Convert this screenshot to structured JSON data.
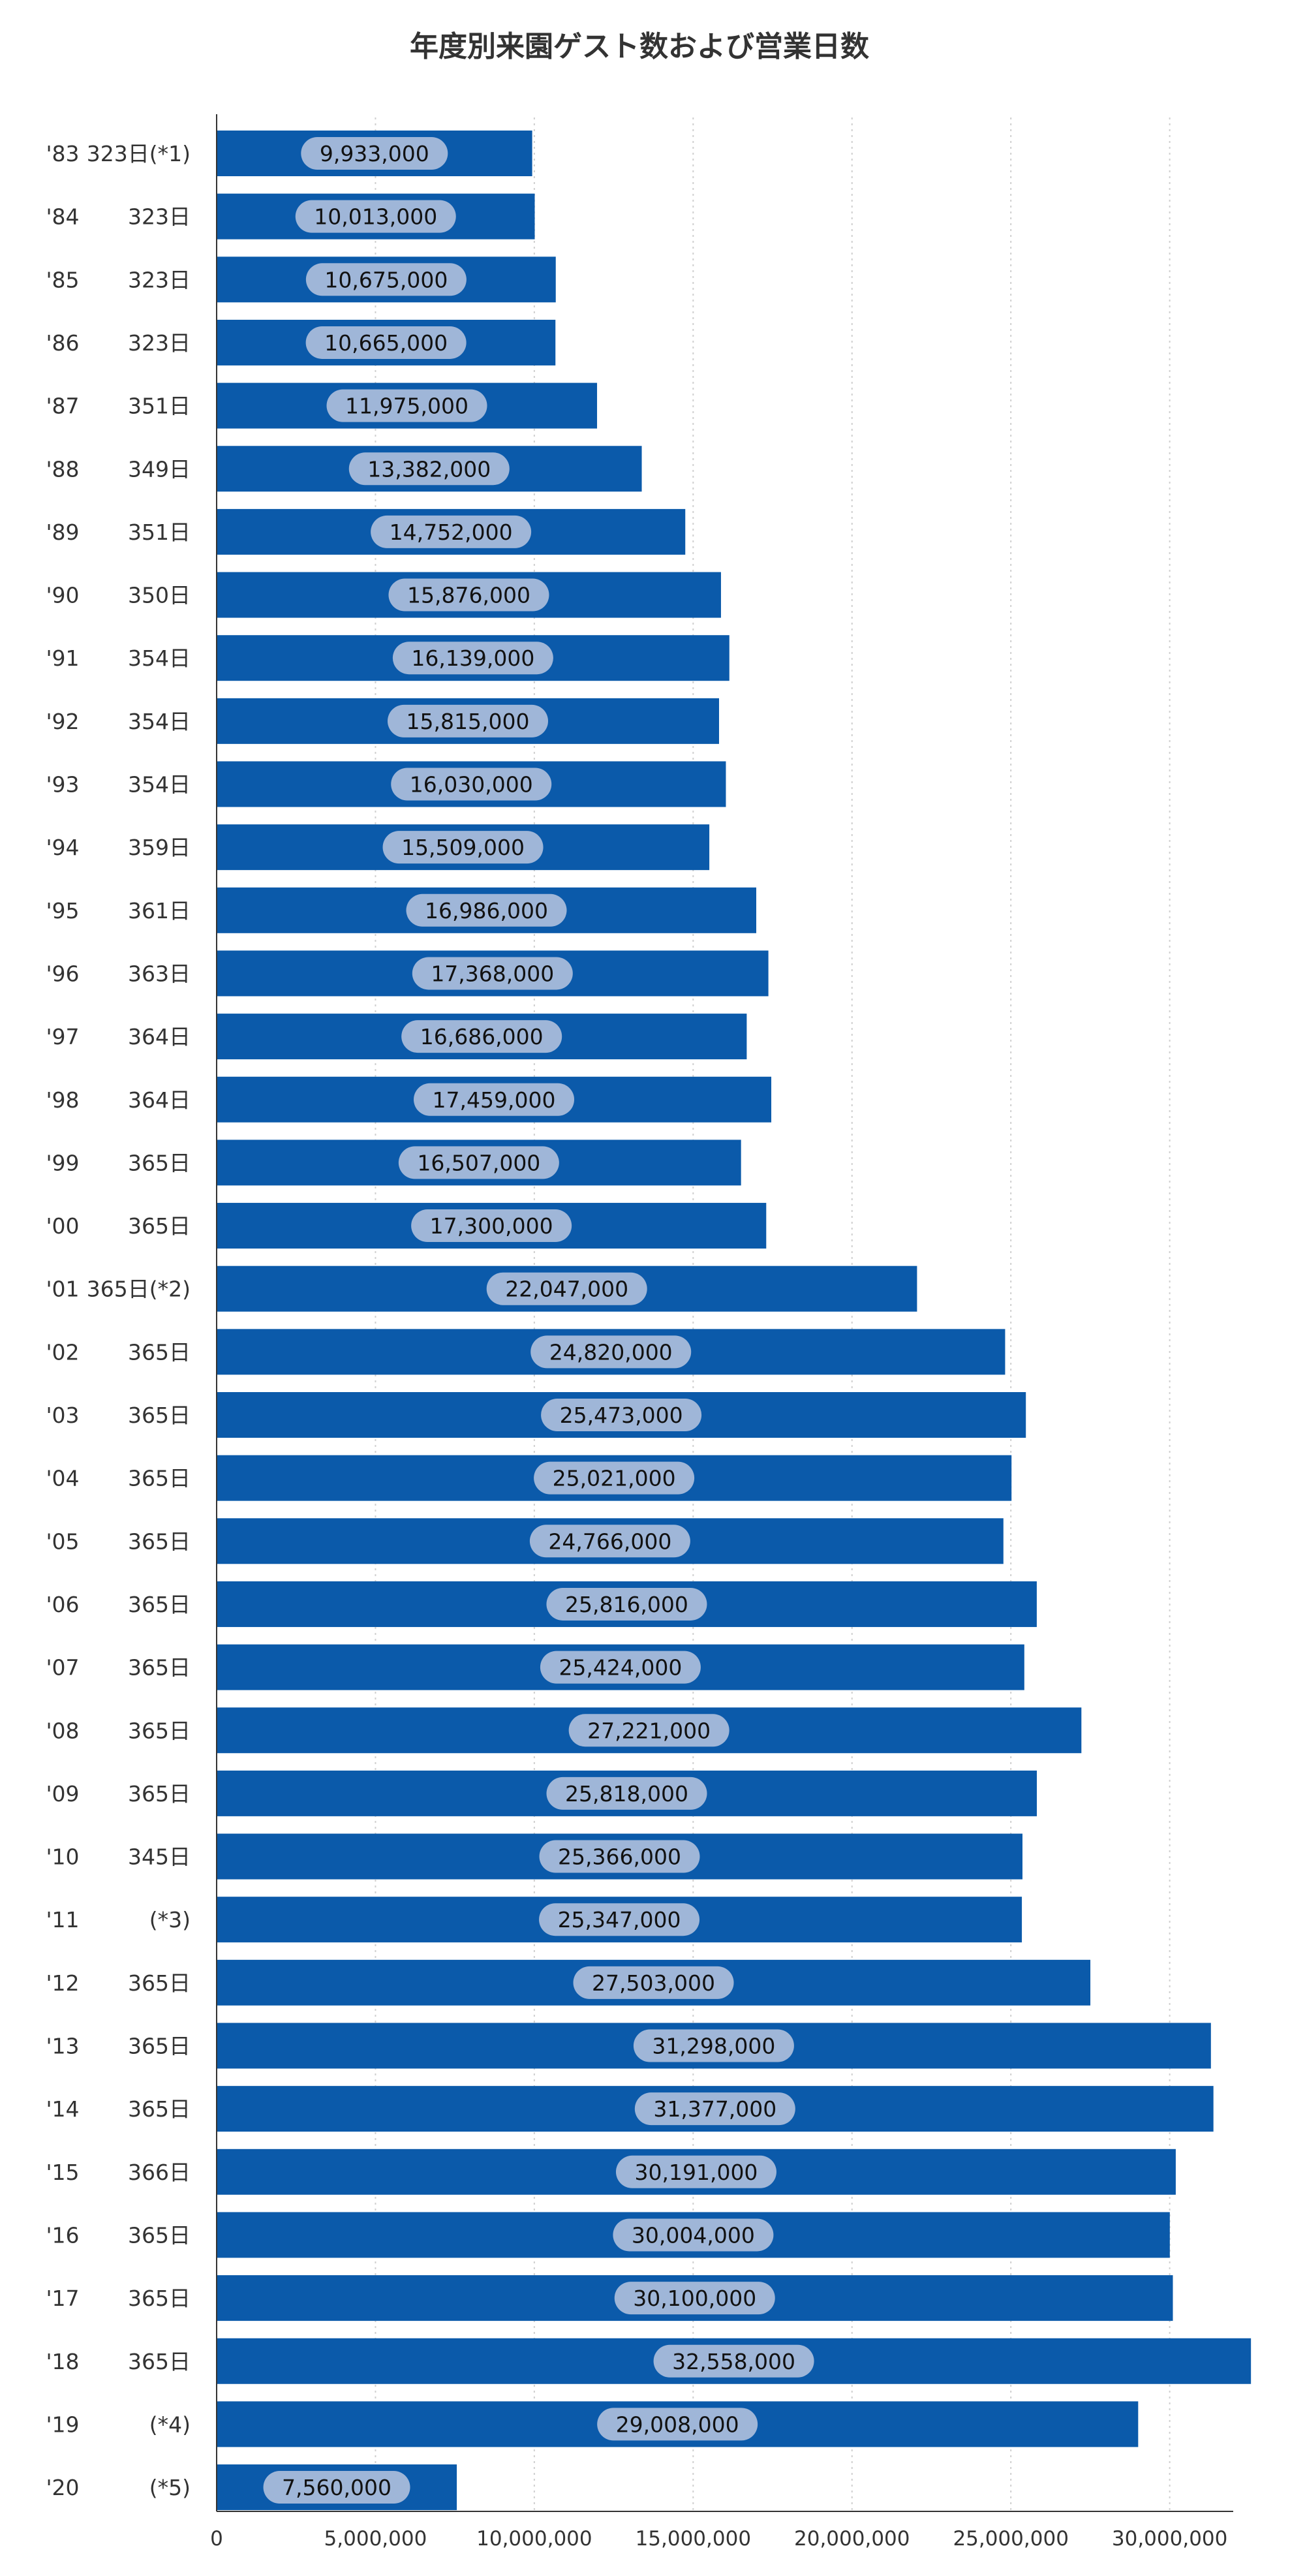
{
  "chart_data": {
    "type": "bar",
    "orientation": "horizontal",
    "title": "年度別来園ゲスト数および営業日数",
    "xlabel": "",
    "ylabel": "",
    "xlim": [
      0,
      32000000
    ],
    "xticks": [
      0,
      5000000,
      10000000,
      15000000,
      20000000,
      25000000,
      30000000
    ],
    "xtick_labels": [
      "0",
      "5,000,000",
      "10,000,000",
      "15,000,000",
      "20,000,000",
      "25,000,000",
      "30,000,000"
    ],
    "grid": true,
    "bar_color": "#0b5aaa",
    "label_bg_color": "#9fb6d8",
    "categories": [
      {
        "year": "'83",
        "days": "323日(*1)"
      },
      {
        "year": "'84",
        "days": "323日"
      },
      {
        "year": "'85",
        "days": "323日"
      },
      {
        "year": "'86",
        "days": "323日"
      },
      {
        "year": "'87",
        "days": "351日"
      },
      {
        "year": "'88",
        "days": "349日"
      },
      {
        "year": "'89",
        "days": "351日"
      },
      {
        "year": "'90",
        "days": "350日"
      },
      {
        "year": "'91",
        "days": "354日"
      },
      {
        "year": "'92",
        "days": "354日"
      },
      {
        "year": "'93",
        "days": "354日"
      },
      {
        "year": "'94",
        "days": "359日"
      },
      {
        "year": "'95",
        "days": "361日"
      },
      {
        "year": "'96",
        "days": "363日"
      },
      {
        "year": "'97",
        "days": "364日"
      },
      {
        "year": "'98",
        "days": "364日"
      },
      {
        "year": "'99",
        "days": "365日"
      },
      {
        "year": "'00",
        "days": "365日"
      },
      {
        "year": "'01",
        "days": "365日(*2)"
      },
      {
        "year": "'02",
        "days": "365日"
      },
      {
        "year": "'03",
        "days": "365日"
      },
      {
        "year": "'04",
        "days": "365日"
      },
      {
        "year": "'05",
        "days": "365日"
      },
      {
        "year": "'06",
        "days": "365日"
      },
      {
        "year": "'07",
        "days": "365日"
      },
      {
        "year": "'08",
        "days": "365日"
      },
      {
        "year": "'09",
        "days": "365日"
      },
      {
        "year": "'10",
        "days": "345日"
      },
      {
        "year": "'11",
        "days": "(*3)"
      },
      {
        "year": "'12",
        "days": "365日"
      },
      {
        "year": "'13",
        "days": "365日"
      },
      {
        "year": "'14",
        "days": "365日"
      },
      {
        "year": "'15",
        "days": "366日"
      },
      {
        "year": "'16",
        "days": "365日"
      },
      {
        "year": "'17",
        "days": "365日"
      },
      {
        "year": "'18",
        "days": "365日"
      },
      {
        "year": "'19",
        "days": "(*4)"
      },
      {
        "year": "'20",
        "days": "(*5)"
      }
    ],
    "values": [
      9933000,
      10013000,
      10675000,
      10665000,
      11975000,
      13382000,
      14752000,
      15876000,
      16139000,
      15815000,
      16030000,
      15509000,
      16986000,
      17368000,
      16686000,
      17459000,
      16507000,
      17300000,
      22047000,
      24820000,
      25473000,
      25021000,
      24766000,
      25816000,
      25424000,
      27221000,
      25818000,
      25366000,
      25347000,
      27503000,
      31298000,
      31377000,
      30191000,
      30004000,
      30100000,
      32558000,
      29008000,
      7560000
    ],
    "value_labels": [
      "9,933,000",
      "10,013,000",
      "10,675,000",
      "10,665,000",
      "11,975,000",
      "13,382,000",
      "14,752,000",
      "15,876,000",
      "16,139,000",
      "15,815,000",
      "16,030,000",
      "15,509,000",
      "16,986,000",
      "17,368,000",
      "16,686,000",
      "17,459,000",
      "16,507,000",
      "17,300,000",
      "22,047,000",
      "24,820,000",
      "25,473,000",
      "25,021,000",
      "24,766,000",
      "25,816,000",
      "25,424,000",
      "27,221,000",
      "25,818,000",
      "25,366,000",
      "25,347,000",
      "27,503,000",
      "31,298,000",
      "31,377,000",
      "30,191,000",
      "30,004,000",
      "30,100,000",
      "32,558,000",
      "29,008,000",
      "7,560,000"
    ]
  }
}
